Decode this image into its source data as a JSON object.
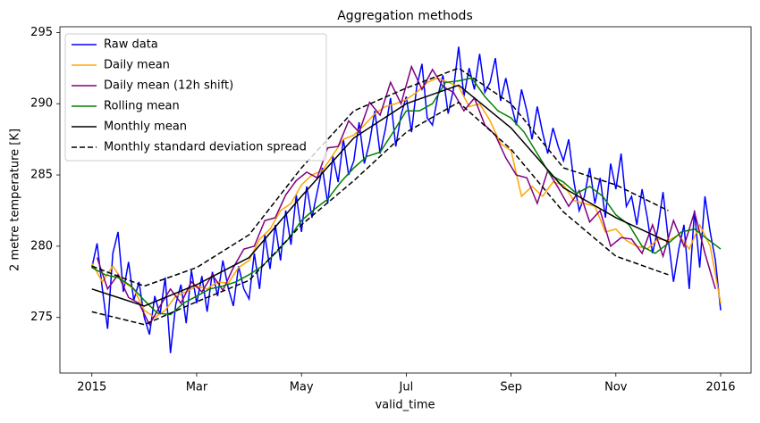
{
  "chart_data": {
    "type": "line",
    "title": "Aggregation methods",
    "x_label": "valid_time",
    "y_label": "2 metre temperature [K]",
    "xlim": [
      -0.61,
      12.58
    ],
    "xticks": [
      {
        "value": 0,
        "label": "2015"
      },
      {
        "value": 2,
        "label": "Mar"
      },
      {
        "value": 4,
        "label": "May"
      },
      {
        "value": 6,
        "label": "Jul"
      },
      {
        "value": 8,
        "label": "Sep"
      },
      {
        "value": 10,
        "label": "Nov"
      },
      {
        "value": 12,
        "label": "2016"
      }
    ],
    "ylim": [
      271.1,
      295.4
    ],
    "yticks": [
      275,
      280,
      285,
      290,
      295
    ],
    "legend": "upper left",
    "series": [
      {
        "name": "Raw data",
        "color": "#0000ff",
        "x": [
          0,
          0.1,
          0.2,
          0.3,
          0.4,
          0.5,
          0.6,
          0.7,
          0.8,
          0.9,
          1,
          1.1,
          1.2,
          1.3,
          1.4,
          1.5,
          1.6,
          1.7,
          1.8,
          1.9,
          2,
          2.1,
          2.2,
          2.3,
          2.4,
          2.5,
          2.6,
          2.7,
          2.8,
          2.9,
          3,
          3.1,
          3.2,
          3.3,
          3.4,
          3.5,
          3.6,
          3.7,
          3.8,
          3.9,
          4,
          4.1,
          4.2,
          4.3,
          4.4,
          4.5,
          4.6,
          4.7,
          4.8,
          4.9,
          5,
          5.1,
          5.2,
          5.3,
          5.4,
          5.5,
          5.6,
          5.7,
          5.8,
          5.9,
          6,
          6.1,
          6.2,
          6.3,
          6.4,
          6.5,
          6.6,
          6.7,
          6.8,
          6.9,
          7,
          7.1,
          7.2,
          7.3,
          7.4,
          7.5,
          7.6,
          7.7,
          7.8,
          7.9,
          8,
          8.1,
          8.2,
          8.3,
          8.4,
          8.5,
          8.6,
          8.7,
          8.8,
          8.9,
          9,
          9.1,
          9.2,
          9.3,
          9.4,
          9.5,
          9.6,
          9.7,
          9.8,
          9.9,
          10,
          10.1,
          10.2,
          10.3,
          10.4,
          10.5,
          10.6,
          10.7,
          10.8,
          10.9,
          11,
          11.1,
          11.2,
          11.3,
          11.4,
          11.5,
          11.6,
          11.7,
          11.8,
          11.9,
          12
        ],
        "values": [
          278.5,
          280.2,
          277.0,
          274.2,
          279.5,
          281.0,
          276.8,
          278.9,
          276.2,
          277.5,
          275.0,
          273.8,
          276.5,
          275.2,
          277.8,
          272.5,
          275.9,
          277.3,
          274.6,
          278.3,
          276.0,
          277.9,
          275.4,
          278.2,
          276.5,
          279.0,
          277.1,
          275.8,
          278.6,
          277.0,
          276.3,
          279.5,
          277.0,
          280.8,
          278.4,
          281.5,
          279.0,
          282.5,
          280.1,
          283.6,
          281.0,
          284.2,
          282.0,
          283.8,
          285.5,
          283.0,
          286.3,
          284.5,
          287.5,
          285.0,
          286.0,
          288.7,
          285.8,
          287.3,
          289.5,
          286.5,
          288.2,
          290.4,
          287.0,
          289.2,
          290.5,
          288.0,
          291.2,
          292.8,
          289.0,
          288.5,
          290.5,
          292.0,
          289.3,
          291.0,
          294.0,
          290.5,
          292.5,
          291.0,
          293.5,
          290.8,
          291.5,
          293.2,
          290.2,
          291.8,
          290.0,
          288.5,
          291.0,
          289.5,
          287.5,
          289.8,
          288.0,
          286.5,
          288.3,
          287.0,
          286.0,
          287.5,
          284.5,
          282.5,
          283.5,
          285.5,
          283.0,
          284.8,
          282.0,
          285.8,
          284.0,
          286.5,
          282.8,
          283.5,
          281.5,
          284.0,
          282.0,
          279.5,
          281.2,
          283.8,
          280.5,
          277.5,
          279.8,
          281.5,
          277.0,
          282.5,
          278.5,
          283.5,
          281.0,
          279.0,
          275.5
        ]
      },
      {
        "name": "Daily mean",
        "color": "#ffa500",
        "x": [
          0,
          0.2,
          0.4,
          0.6,
          0.8,
          1,
          1.2,
          1.4,
          1.6,
          1.8,
          2,
          2.2,
          2.4,
          2.6,
          2.8,
          3,
          3.2,
          3.4,
          3.6,
          3.8,
          4,
          4.2,
          4.4,
          4.6,
          4.8,
          5,
          5.2,
          5.4,
          5.6,
          5.8,
          6,
          6.2,
          6.4,
          6.6,
          6.8,
          7,
          7.2,
          7.4,
          7.6,
          7.8,
          8,
          8.2,
          8.4,
          8.6,
          8.8,
          9,
          9.2,
          9.4,
          9.6,
          9.8,
          10,
          10.2,
          10.4,
          10.6,
          10.8,
          11,
          11.2,
          11.4,
          11.6,
          11.8,
          12
        ],
        "values": [
          278.8,
          277.5,
          278.6,
          277.5,
          277.0,
          275.5,
          275.0,
          275.5,
          276.5,
          276.8,
          277.2,
          277.0,
          277.5,
          277.4,
          278.5,
          279.0,
          280.5,
          281.2,
          282.5,
          283.0,
          284.3,
          285.0,
          285.3,
          286.4,
          287.5,
          287.8,
          288.5,
          289.3,
          289.8,
          290.0,
          290.3,
          290.8,
          291.5,
          291.8,
          291.5,
          291.2,
          289.8,
          290.0,
          288.8,
          287.2,
          286.7,
          283.5,
          284.2,
          283.5,
          284.5,
          284.3,
          283.2,
          283.0,
          282.8,
          281.0,
          281.2,
          280.4,
          280.0,
          279.8,
          280.5,
          280.4,
          280.8,
          279.8,
          281.5,
          280.0,
          276.0
        ]
      },
      {
        "name": "Daily mean (12h shift)",
        "color": "#800080",
        "x": [
          0.1,
          0.3,
          0.5,
          0.7,
          0.9,
          1.1,
          1.3,
          1.5,
          1.7,
          1.9,
          2.1,
          2.3,
          2.5,
          2.7,
          2.9,
          3.1,
          3.3,
          3.5,
          3.7,
          3.9,
          4.1,
          4.3,
          4.5,
          4.7,
          4.9,
          5.1,
          5.3,
          5.5,
          5.7,
          5.9,
          6.1,
          6.3,
          6.5,
          6.7,
          6.9,
          7.1,
          7.3,
          7.5,
          7.7,
          7.9,
          8.1,
          8.3,
          8.5,
          8.7,
          8.9,
          9.1,
          9.3,
          9.5,
          9.7,
          9.9,
          10.1,
          10.3,
          10.5,
          10.7,
          10.9,
          11.1,
          11.3,
          11.5,
          11.7,
          11.9
        ],
        "values": [
          279.2,
          277.0,
          278.0,
          276.4,
          276.0,
          274.5,
          275.8,
          277.0,
          276.0,
          277.5,
          276.8,
          278.0,
          276.9,
          278.5,
          279.8,
          280.0,
          281.8,
          282.0,
          283.6,
          284.6,
          285.2,
          284.8,
          286.9,
          287.0,
          288.8,
          288.0,
          290.1,
          289.2,
          291.5,
          290.0,
          292.6,
          291.0,
          292.4,
          291.2,
          290.8,
          289.5,
          290.4,
          288.5,
          287.8,
          286.2,
          285.0,
          284.8,
          283.0,
          285.3,
          284.1,
          282.8,
          283.9,
          281.7,
          282.5,
          280.0,
          280.6,
          280.5,
          279.5,
          281.5,
          279.3,
          281.8,
          280.0,
          282.4,
          279.5,
          277.0
        ]
      },
      {
        "name": "Rolling mean",
        "color": "#008000",
        "x": [
          0,
          0.25,
          0.5,
          0.75,
          1,
          1.25,
          1.5,
          1.75,
          2,
          2.25,
          2.5,
          2.75,
          3,
          3.25,
          3.5,
          3.75,
          4,
          4.25,
          4.5,
          4.75,
          5,
          5.25,
          5.5,
          5.75,
          6,
          6.25,
          6.5,
          6.75,
          7,
          7.25,
          7.5,
          7.75,
          8,
          8.25,
          8.5,
          8.75,
          9,
          9.25,
          9.5,
          9.75,
          10,
          10.25,
          10.5,
          10.75,
          11,
          11.25,
          11.5,
          11.75,
          12
        ],
        "values": [
          278.5,
          278.0,
          277.8,
          277.2,
          276.2,
          275.3,
          275.2,
          276.0,
          276.5,
          277.0,
          277.2,
          277.5,
          278.0,
          278.6,
          279.5,
          280.5,
          281.8,
          282.6,
          283.3,
          284.5,
          285.5,
          286.3,
          286.6,
          288.0,
          289.5,
          289.5,
          290.0,
          291.5,
          291.6,
          291.8,
          290.5,
          289.5,
          289.0,
          288.0,
          286.5,
          285.0,
          284.5,
          283.7,
          284.2,
          283.5,
          282.2,
          281.5,
          280.0,
          279.5,
          280.2,
          281.0,
          281.2,
          280.5,
          279.8
        ]
      },
      {
        "name": "Monthly mean",
        "color": "#000000",
        "x": [
          0,
          1,
          2,
          3,
          4,
          5,
          6,
          7,
          8,
          9,
          10,
          11
        ],
        "values": [
          277.0,
          275.8,
          277.3,
          279.2,
          283.5,
          287.6,
          290.0,
          291.3,
          288.3,
          284.1,
          282.0,
          280.3
        ]
      },
      {
        "name": "Monthly standard deviation spread",
        "color": "#000000",
        "dashed": true,
        "x": [
          0,
          1,
          2,
          3,
          4,
          5,
          6,
          7,
          8,
          9,
          10,
          11
        ],
        "upper": [
          278.6,
          277.2,
          278.5,
          280.8,
          285.5,
          289.5,
          291.1,
          292.5,
          290.0,
          285.5,
          284.3,
          282.5
        ],
        "lower": [
          275.4,
          274.5,
          276.1,
          277.6,
          281.5,
          284.6,
          288.0,
          290.1,
          286.8,
          282.4,
          279.3,
          278.0
        ]
      }
    ]
  }
}
